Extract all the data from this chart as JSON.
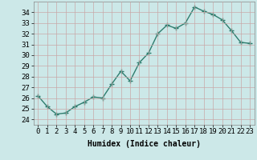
{
  "x": [
    0,
    1,
    2,
    3,
    4,
    5,
    6,
    7,
    8,
    9,
    10,
    11,
    12,
    13,
    14,
    15,
    16,
    17,
    18,
    19,
    20,
    21,
    22,
    23
  ],
  "y": [
    26.2,
    25.2,
    24.5,
    24.6,
    25.2,
    25.6,
    26.1,
    26.0,
    27.3,
    28.5,
    27.6,
    29.3,
    30.2,
    32.0,
    32.8,
    32.5,
    33.0,
    34.5,
    34.1,
    33.8,
    33.3,
    32.3,
    31.2,
    31.1
  ],
  "line_color": "#2e7d6e",
  "marker": "+",
  "marker_size": 4,
  "bg_color": "#cce8e8",
  "grid_color": "#b8d4d4",
  "xlabel": "Humidex (Indice chaleur)",
  "xlim": [
    -0.5,
    23.5
  ],
  "ylim": [
    23.5,
    35.0
  ],
  "yticks": [
    24,
    25,
    26,
    27,
    28,
    29,
    30,
    31,
    32,
    33,
    34
  ],
  "xticks": [
    0,
    1,
    2,
    3,
    4,
    5,
    6,
    7,
    8,
    9,
    10,
    11,
    12,
    13,
    14,
    15,
    16,
    17,
    18,
    19,
    20,
    21,
    22,
    23
  ],
  "xlabel_fontsize": 7,
  "tick_fontsize": 6.5,
  "linewidth": 1.0,
  "marker_lw": 1.0
}
